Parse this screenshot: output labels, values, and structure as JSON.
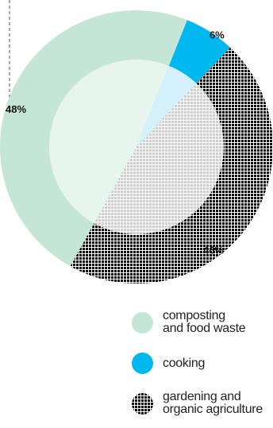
{
  "chart_data": {
    "type": "pie",
    "style": "donut with lighter inner disc, partially cropped at left/top",
    "slices": [
      {
        "label": "composting\nand food waste",
        "value": 48,
        "value_label": "48%",
        "color": "#c5e6d6",
        "inner_color": "#e7f5ef",
        "pattern": "solid"
      },
      {
        "label": "cooking",
        "value": 6,
        "value_label": "6%",
        "color": "#00b8ee",
        "inner_color": "#d5f1fb",
        "pattern": "solid"
      },
      {
        "label": "gardening and\norganic agriculture",
        "value": 46,
        "value_label": "46%",
        "color": "#000000",
        "inner_color": "#d8d8d8",
        "pattern": "checkered"
      }
    ],
    "legend": [
      {
        "text_line1": "composting",
        "text_line2": "and food waste",
        "color": "#c5e6d6",
        "pattern": "solid"
      },
      {
        "text_line1": "cooking",
        "text_line2": "",
        "color": "#00b8ee",
        "pattern": "solid"
      },
      {
        "text_line1": "gardening and",
        "text_line2": "organic agriculture",
        "color": "#000000",
        "pattern": "checkered"
      }
    ],
    "legend_placement": "bottom-right"
  }
}
